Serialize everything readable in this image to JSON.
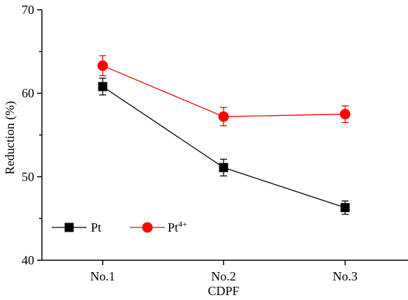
{
  "chart_data": {
    "type": "line",
    "title": "",
    "xlabel": "CDPF",
    "ylabel": "Reduction (%)",
    "categories": [
      "No.1",
      "No.2",
      "No.3"
    ],
    "ylim": [
      40,
      70
    ],
    "yticks": [
      40,
      50,
      60,
      70
    ],
    "grid": false,
    "legend_position": "bottom-left",
    "series": [
      {
        "name": "Pt",
        "values": [
          60.8,
          51.1,
          46.3
        ],
        "errors": [
          1.0,
          1.0,
          0.8
        ],
        "color": "#000000",
        "marker": "square"
      },
      {
        "name": "Pt",
        "name_superscript": "4+",
        "values": [
          63.3,
          57.2,
          57.5
        ],
        "errors": [
          1.2,
          1.1,
          1.0
        ],
        "color": "#ff0000",
        "marker": "circle"
      }
    ]
  }
}
